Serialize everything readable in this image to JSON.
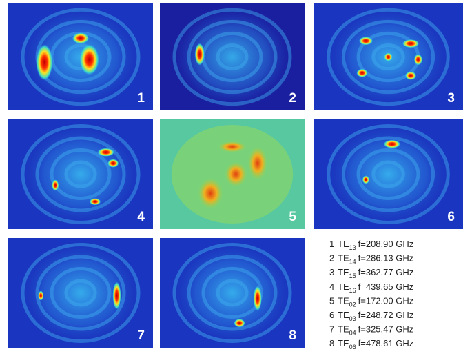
{
  "panels": [
    {
      "label": "1"
    },
    {
      "label": "2"
    },
    {
      "label": "3"
    },
    {
      "label": "4"
    },
    {
      "label": "5"
    },
    {
      "label": "6"
    },
    {
      "label": "7"
    },
    {
      "label": "8"
    }
  ],
  "legend": [
    {
      "number": "1",
      "mode": "TE",
      "subscript": "13",
      "frequency": "f=208.90 GHz"
    },
    {
      "number": "2",
      "mode": "TE",
      "subscript": "14",
      "frequency": "f=286.13 GHz"
    },
    {
      "number": "3",
      "mode": "TE",
      "subscript": "15",
      "frequency": "f=362.77 GHz"
    },
    {
      "number": "4",
      "mode": "TE",
      "subscript": "16",
      "frequency": "f=439.65 GHz"
    },
    {
      "number": "5",
      "mode": "TE",
      "subscript": "02",
      "frequency": "f=172.00 GHz"
    },
    {
      "number": "6",
      "mode": "TE",
      "subscript": "03",
      "frequency": "f=248.72 GHz"
    },
    {
      "number": "7",
      "mode": "TE",
      "subscript": "04",
      "frequency": "f=325.47 GHz"
    },
    {
      "number": "8",
      "mode": "TE",
      "subscript": "06",
      "frequency": "f=478.61 GHz"
    }
  ]
}
